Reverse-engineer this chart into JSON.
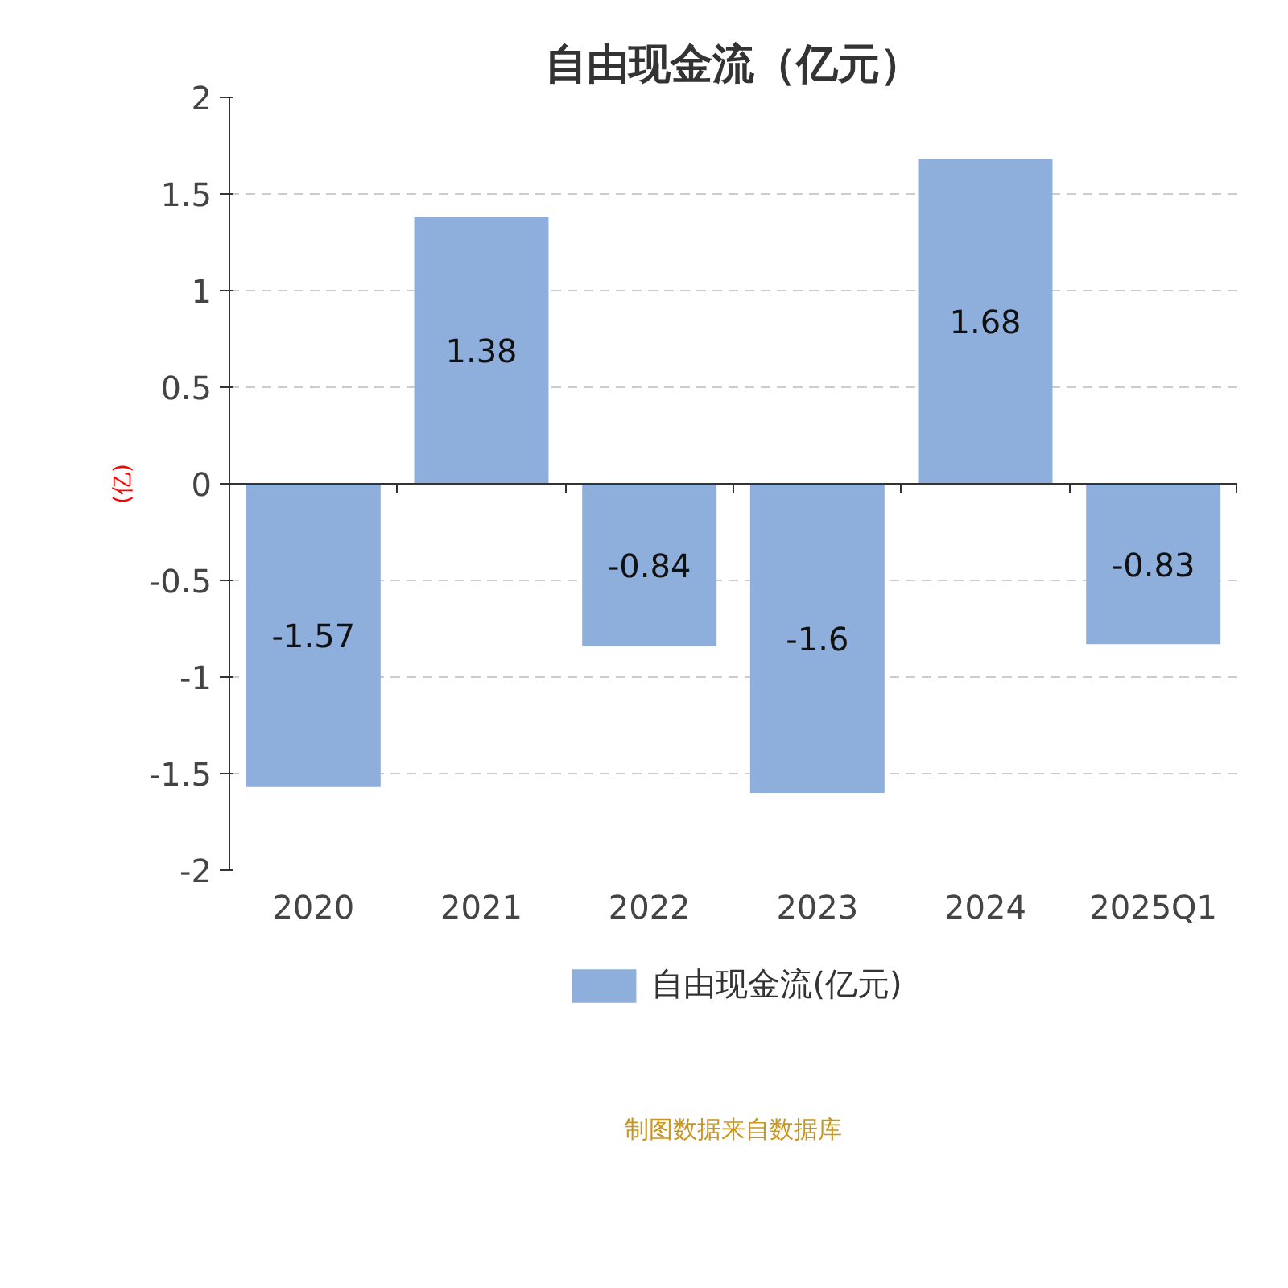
{
  "chart_data": {
    "type": "bar",
    "title": "自由现金流（亿元）",
    "ylabel": "(亿)",
    "categories": [
      "2020",
      "2021",
      "2022",
      "2023",
      "2024",
      "2025Q1"
    ],
    "series": [
      {
        "name": "自由现金流(亿元)",
        "color": "#8eaedb",
        "values": [
          -1.57,
          1.38,
          -0.84,
          -1.6,
          1.68,
          -0.83
        ]
      }
    ],
    "ylim": [
      -2,
      2
    ],
    "yticks": [
      -2,
      -1.5,
      -1,
      -0.5,
      0,
      0.5,
      1,
      1.5,
      2
    ],
    "grid": "y",
    "legend": "bottom",
    "data_labels": true,
    "annotations": [
      "制图数据来自数据库"
    ]
  }
}
